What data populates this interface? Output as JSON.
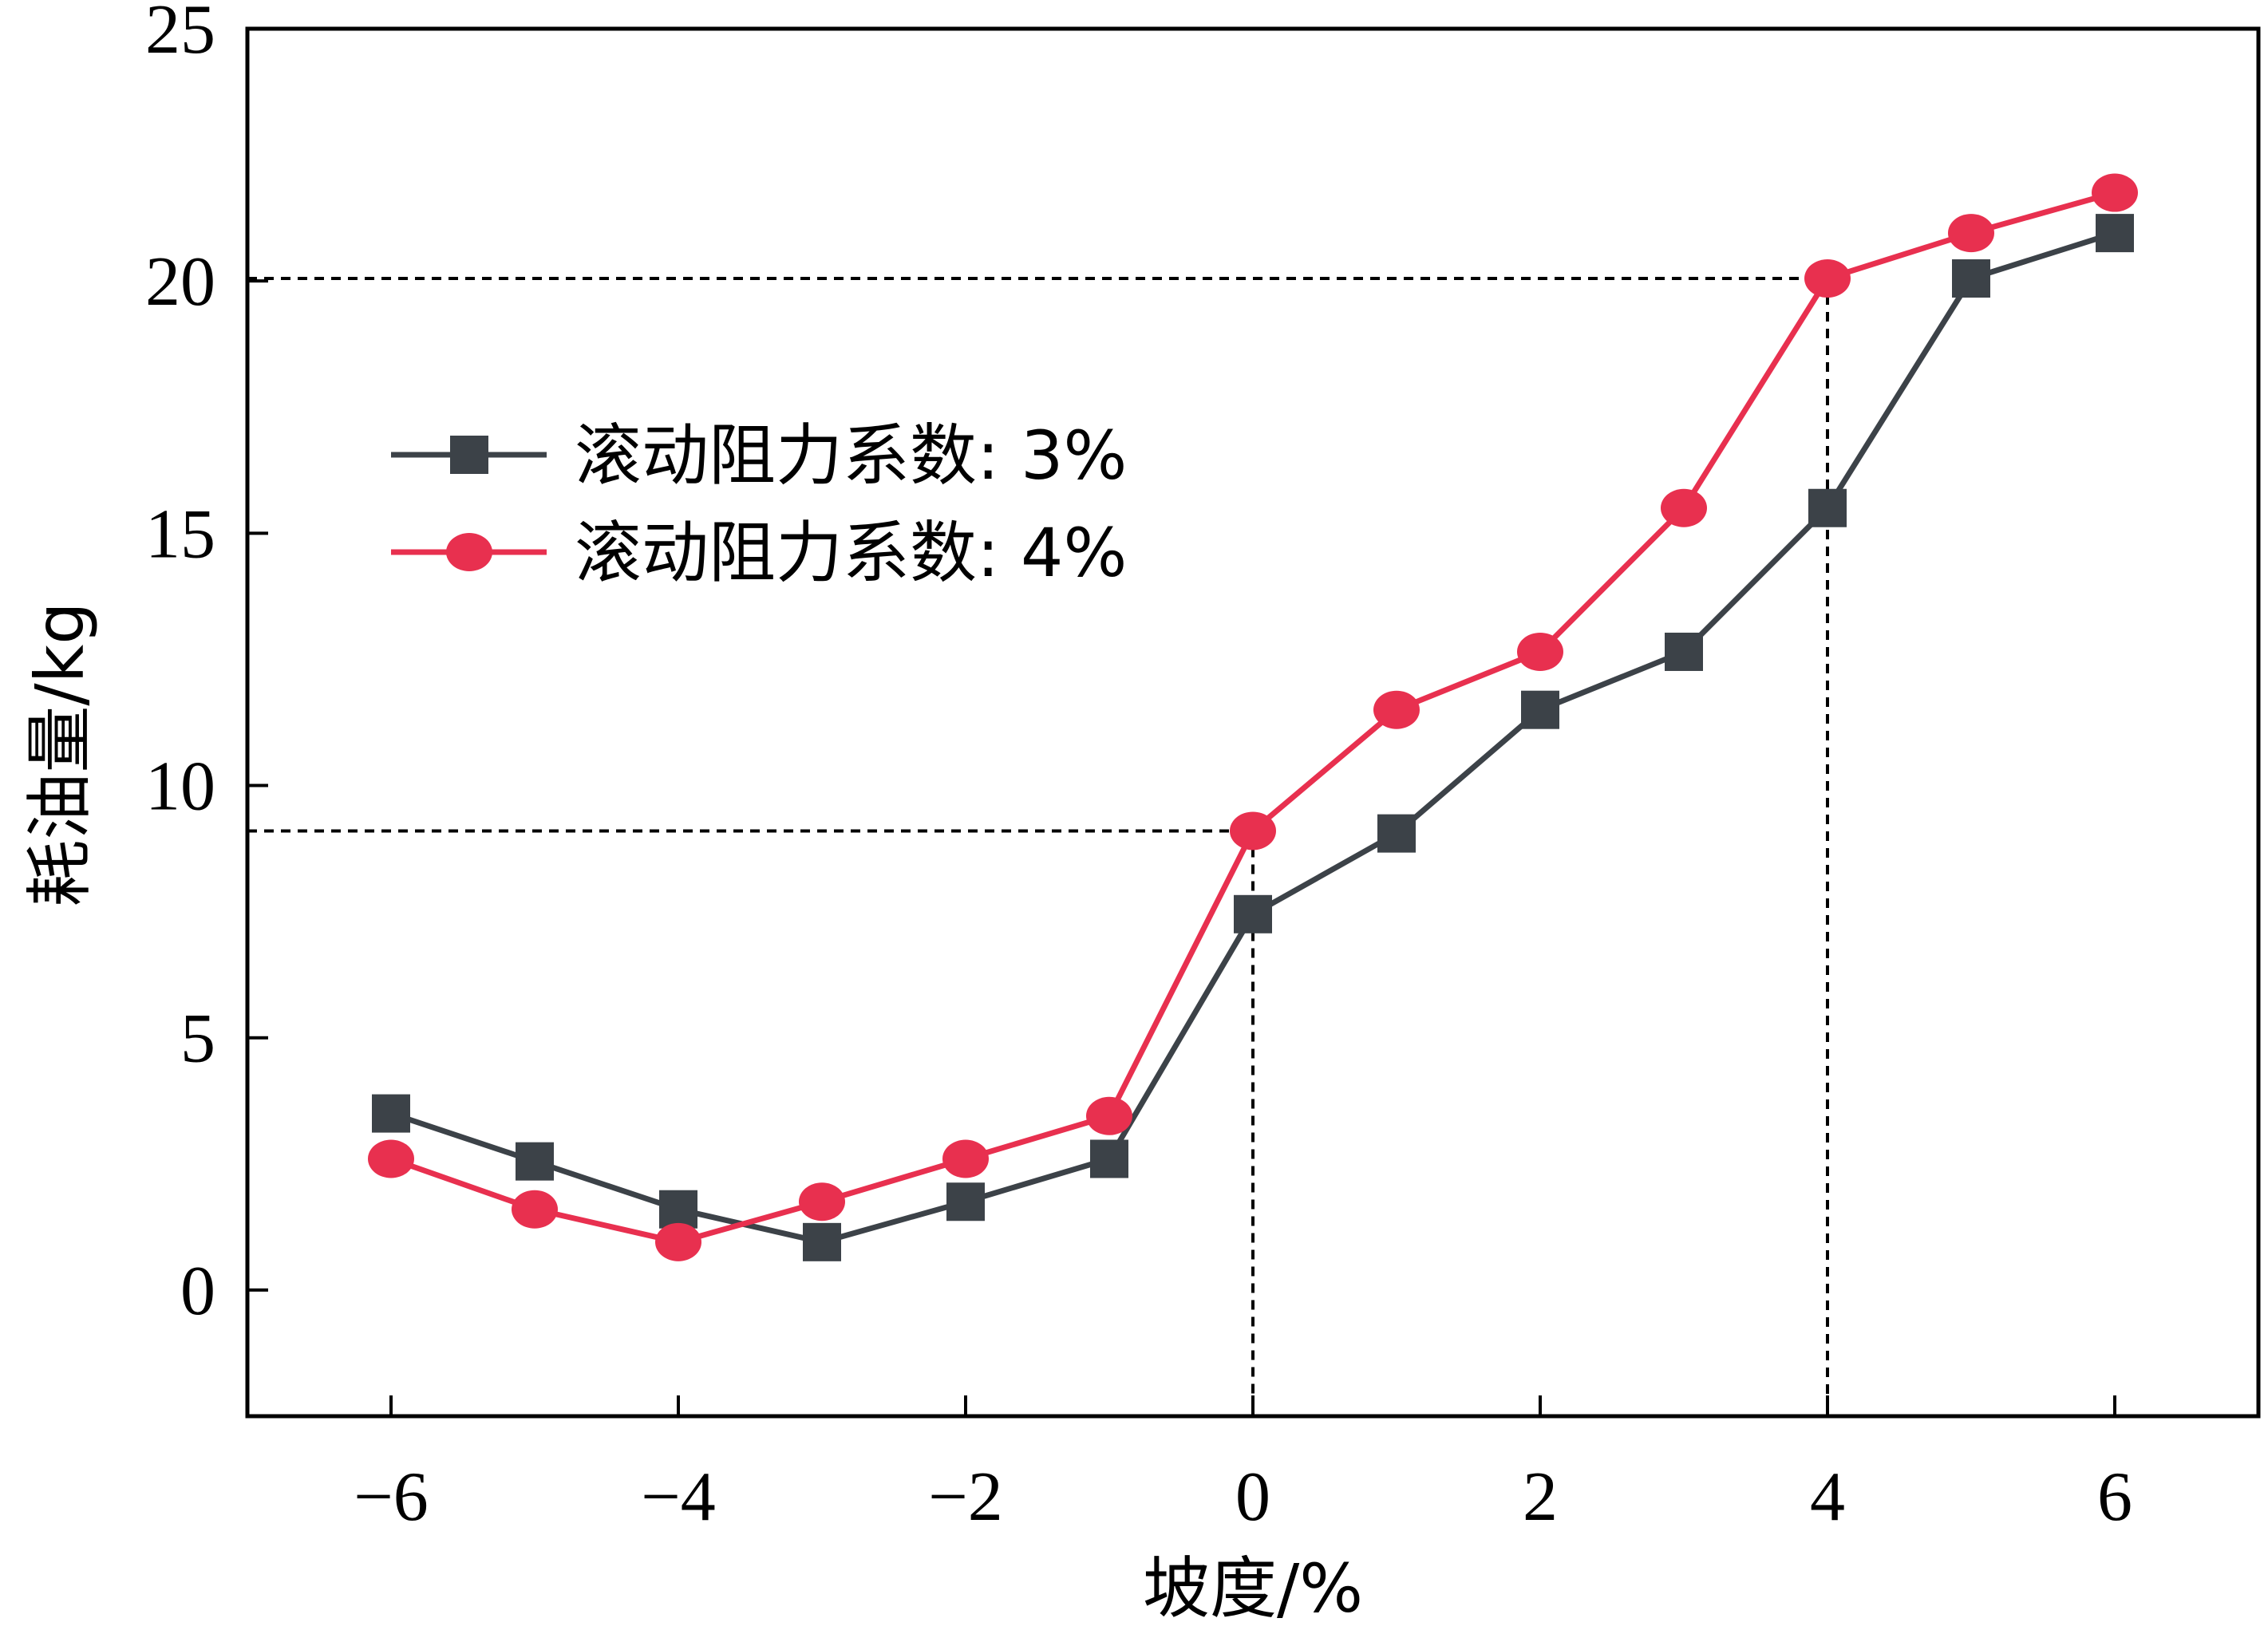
{
  "chart_data": {
    "type": "line",
    "title": "",
    "xlabel": "坡度/%",
    "ylabel": "耗油量/kg",
    "xlim": [
      -7,
      7
    ],
    "ylim": [
      -2.5,
      25
    ],
    "x_ticks": [
      -6,
      -4,
      -2,
      0,
      2,
      4,
      6
    ],
    "x_tick_labels": [
      "−6",
      "−4",
      "−2",
      "0",
      "2",
      "4",
      "6"
    ],
    "y_ticks": [
      0,
      5,
      10,
      15,
      20,
      25
    ],
    "y_tick_labels": [
      "0",
      "5",
      "10",
      "15",
      "20",
      "25"
    ],
    "x": [
      -6,
      -5,
      -4,
      -3,
      -2,
      -1,
      0,
      1,
      2,
      3,
      4,
      5,
      6
    ],
    "series": [
      {
        "name": "滚动阻力系数: 3%",
        "marker": "square",
        "color": "#3c4248",
        "values": [
          3.5,
          2.55,
          1.6,
          0.95,
          1.75,
          2.6,
          7.45,
          9.05,
          11.5,
          12.65,
          15.5,
          20.05,
          20.95
        ]
      },
      {
        "name": "滚动阻力系数: 4%",
        "marker": "circle",
        "color": "#e8304f",
        "values": [
          2.6,
          1.6,
          0.95,
          1.75,
          2.6,
          3.45,
          9.1,
          11.5,
          12.65,
          15.5,
          20.05,
          20.95,
          21.75
        ]
      }
    ],
    "reference_lines": [
      {
        "x": 0,
        "y": 9.1
      },
      {
        "x": 4,
        "y": 20.05
      }
    ],
    "grid": false,
    "legend_position": "upper-left"
  }
}
